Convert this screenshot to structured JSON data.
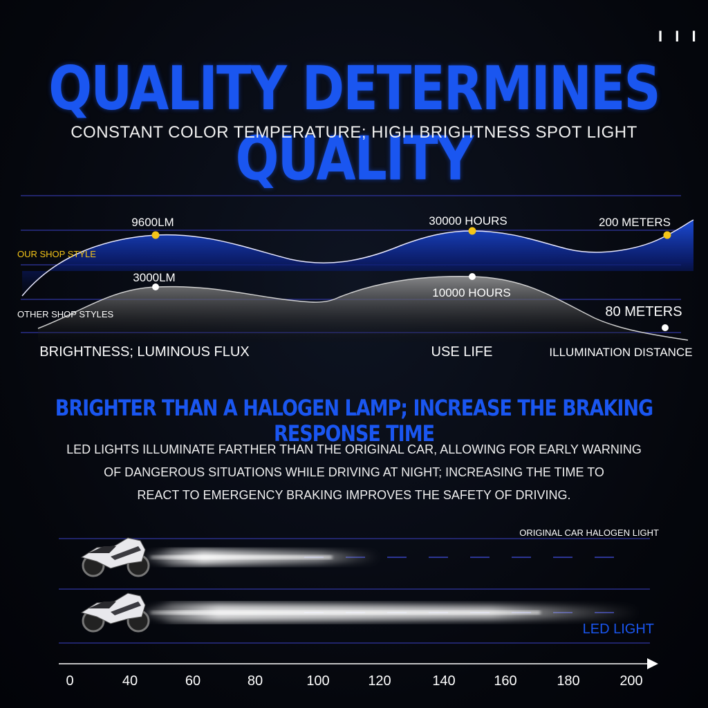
{
  "page_marker": "I I I",
  "title": "QUALITY DETERMINES QUALITY",
  "subtitle": "CONSTANT COLOR TEMPERATURE; HIGH BRIGHTNESS SPOT LIGHT",
  "colors": {
    "accent_blue": "#1a56f0",
    "gold_dot": "#f5c518",
    "white": "#ffffff",
    "grid_line": "#2a2f8a"
  },
  "chart_data": [
    {
      "type": "area",
      "categories": [
        "BRIGHTNESS; LUMINOUS FLUX",
        "USE LIFE",
        "ILLUMINATION DISTANCE"
      ],
      "series": [
        {
          "name": "OUR SHOP STYLE",
          "labels": [
            "9600LM",
            "30000 HOURS",
            "200 METERS"
          ],
          "values": [
            9600,
            30000,
            200
          ]
        },
        {
          "name": "OTHER SHOP STYLES",
          "labels": [
            "3000LM",
            "10000 HOURS",
            "80 METERS"
          ],
          "values": [
            3000,
            10000,
            80
          ]
        }
      ],
      "grid": true
    },
    {
      "type": "bar",
      "title": "",
      "series": [
        {
          "name": "ORIGINAL CAR HALOGEN LIGHT",
          "values": [
            95
          ]
        },
        {
          "name": "LED LIGHT",
          "values": [
            200
          ]
        }
      ],
      "x_ticks": [
        "0",
        "40",
        "60",
        "80",
        "100",
        "120",
        "140",
        "160",
        "180",
        "200"
      ],
      "xlim": [
        0,
        200
      ]
    }
  ],
  "section2": {
    "title": "BRIGHTER THAN A HALOGEN LAMP; INCREASE THE BRAKING RESPONSE TIME",
    "paragraph": [
      "LED LIGHTS ILLUMINATE FARTHER THAN THE ORIGINAL CAR, ALLOWING FOR EARLY WARNING",
      "OF DANGEROUS SITUATIONS WHILE DRIVING AT NIGHT; INCREASING THE TIME TO",
      "REACT TO EMERGENCY BRAKING IMPROVES THE SAFETY OF DRIVING."
    ]
  }
}
